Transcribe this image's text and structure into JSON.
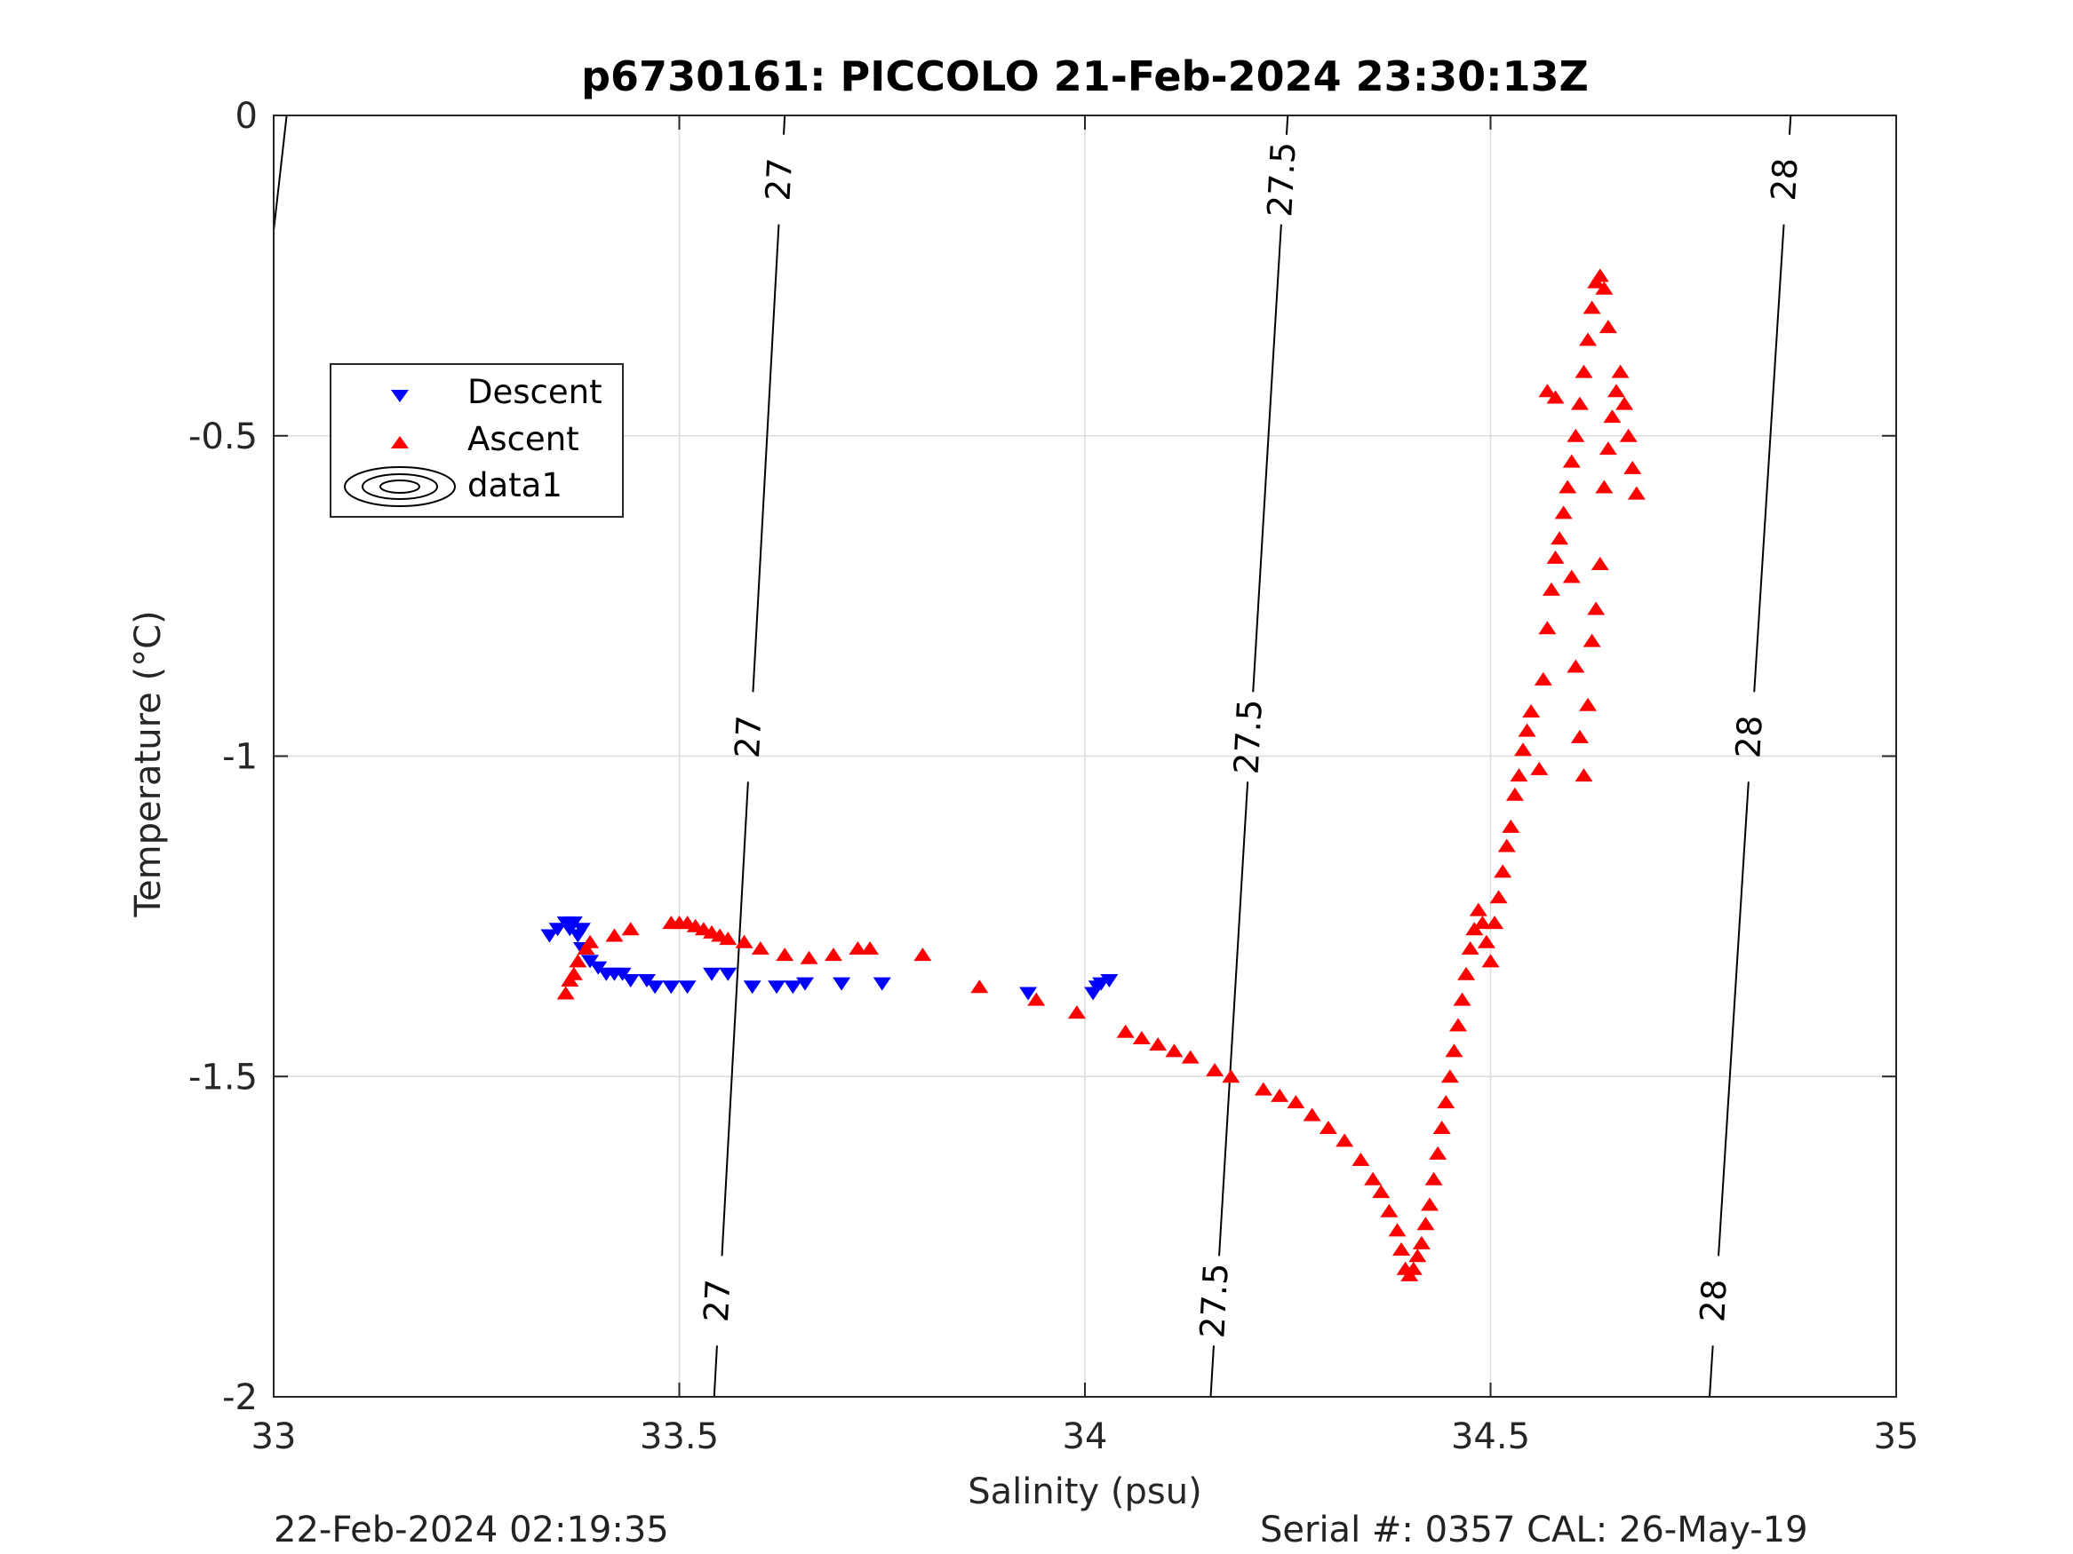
{
  "chart_data": {
    "type": "scatter",
    "title": "p6730161: PICCOLO 21-Feb-2024 23:30:13Z",
    "xlabel": "Salinity (psu)",
    "ylabel": "Temperature (°C)",
    "xlim": [
      33,
      35
    ],
    "ylim": [
      -2,
      0
    ],
    "xticks": [
      33,
      33.5,
      34,
      34.5,
      35
    ],
    "xtick_labels": [
      "33",
      "33.5",
      "34",
      "34.5",
      "35"
    ],
    "yticks": [
      -2,
      -1.5,
      -1,
      -0.5,
      0
    ],
    "ytick_labels": [
      "-2",
      "-1.5",
      "-1",
      "-0.5",
      "0"
    ],
    "grid": true,
    "legend_placement": "upper-left",
    "legend": [
      "Descent",
      "Ascent",
      "data1"
    ],
    "colors": {
      "descent": "#0000ff",
      "ascent": "#ff0000",
      "contour": "#000000",
      "grid": "#dcdcdc",
      "axes": "#262626"
    },
    "series": [
      {
        "name": "Descent",
        "marker": "triangle-down",
        "color": "#0000ff",
        "points": [
          [
            33.34,
            -1.28
          ],
          [
            33.35,
            -1.27
          ],
          [
            33.36,
            -1.26
          ],
          [
            33.365,
            -1.27
          ],
          [
            33.37,
            -1.26
          ],
          [
            33.375,
            -1.28
          ],
          [
            33.38,
            -1.3
          ],
          [
            33.38,
            -1.27
          ],
          [
            33.39,
            -1.32
          ],
          [
            33.4,
            -1.33
          ],
          [
            33.41,
            -1.34
          ],
          [
            33.42,
            -1.34
          ],
          [
            33.43,
            -1.34
          ],
          [
            33.44,
            -1.35
          ],
          [
            33.46,
            -1.35
          ],
          [
            33.47,
            -1.36
          ],
          [
            33.49,
            -1.36
          ],
          [
            33.51,
            -1.36
          ],
          [
            33.54,
            -1.34
          ],
          [
            33.56,
            -1.34
          ],
          [
            33.59,
            -1.36
          ],
          [
            33.62,
            -1.36
          ],
          [
            33.64,
            -1.36
          ],
          [
            33.655,
            -1.355
          ],
          [
            33.7,
            -1.355
          ],
          [
            33.75,
            -1.355
          ],
          [
            33.93,
            -1.37
          ],
          [
            34.01,
            -1.37
          ],
          [
            34.015,
            -1.36
          ],
          [
            34.02,
            -1.355
          ],
          [
            34.03,
            -1.35
          ]
        ]
      },
      {
        "name": "Ascent",
        "marker": "triangle-up",
        "color": "#ff0000",
        "points": [
          [
            33.36,
            -1.37
          ],
          [
            33.365,
            -1.35
          ],
          [
            33.37,
            -1.34
          ],
          [
            33.375,
            -1.32
          ],
          [
            33.385,
            -1.3
          ],
          [
            33.39,
            -1.29
          ],
          [
            33.42,
            -1.28
          ],
          [
            33.44,
            -1.27
          ],
          [
            33.49,
            -1.26
          ],
          [
            33.5,
            -1.26
          ],
          [
            33.51,
            -1.26
          ],
          [
            33.52,
            -1.265
          ],
          [
            33.53,
            -1.27
          ],
          [
            33.54,
            -1.275
          ],
          [
            33.55,
            -1.28
          ],
          [
            33.56,
            -1.285
          ],
          [
            33.58,
            -1.29
          ],
          [
            33.6,
            -1.3
          ],
          [
            33.63,
            -1.31
          ],
          [
            33.66,
            -1.315
          ],
          [
            33.69,
            -1.31
          ],
          [
            33.72,
            -1.3
          ],
          [
            33.735,
            -1.3
          ],
          [
            33.8,
            -1.31
          ],
          [
            33.87,
            -1.36
          ],
          [
            33.94,
            -1.38
          ],
          [
            33.99,
            -1.4
          ],
          [
            34.05,
            -1.43
          ],
          [
            34.07,
            -1.44
          ],
          [
            34.09,
            -1.45
          ],
          [
            34.11,
            -1.46
          ],
          [
            34.13,
            -1.47
          ],
          [
            34.16,
            -1.49
          ],
          [
            34.18,
            -1.5
          ],
          [
            34.22,
            -1.52
          ],
          [
            34.24,
            -1.53
          ],
          [
            34.26,
            -1.54
          ],
          [
            34.28,
            -1.56
          ],
          [
            34.3,
            -1.58
          ],
          [
            34.32,
            -1.6
          ],
          [
            34.34,
            -1.63
          ],
          [
            34.355,
            -1.66
          ],
          [
            34.365,
            -1.68
          ],
          [
            34.375,
            -1.71
          ],
          [
            34.385,
            -1.74
          ],
          [
            34.39,
            -1.77
          ],
          [
            34.395,
            -1.8
          ],
          [
            34.4,
            -1.81
          ],
          [
            34.405,
            -1.8
          ],
          [
            34.41,
            -1.78
          ],
          [
            34.415,
            -1.76
          ],
          [
            34.42,
            -1.73
          ],
          [
            34.425,
            -1.7
          ],
          [
            34.43,
            -1.66
          ],
          [
            34.435,
            -1.62
          ],
          [
            34.44,
            -1.58
          ],
          [
            34.445,
            -1.54
          ],
          [
            34.45,
            -1.5
          ],
          [
            34.455,
            -1.46
          ],
          [
            34.46,
            -1.42
          ],
          [
            34.465,
            -1.38
          ],
          [
            34.47,
            -1.34
          ],
          [
            34.475,
            -1.3
          ],
          [
            34.48,
            -1.27
          ],
          [
            34.485,
            -1.24
          ],
          [
            34.49,
            -1.26
          ],
          [
            34.495,
            -1.29
          ],
          [
            34.5,
            -1.32
          ],
          [
            34.505,
            -1.26
          ],
          [
            34.51,
            -1.22
          ],
          [
            34.515,
            -1.18
          ],
          [
            34.52,
            -1.14
          ],
          [
            34.525,
            -1.11
          ],
          [
            34.53,
            -1.06
          ],
          [
            34.535,
            -1.03
          ],
          [
            34.54,
            -0.99
          ],
          [
            34.545,
            -0.96
          ],
          [
            34.55,
            -0.93
          ],
          [
            34.56,
            -1.02
          ],
          [
            34.565,
            -0.88
          ],
          [
            34.57,
            -0.8
          ],
          [
            34.575,
            -0.74
          ],
          [
            34.58,
            -0.69
          ],
          [
            34.585,
            -0.66
          ],
          [
            34.59,
            -0.62
          ],
          [
            34.595,
            -0.58
          ],
          [
            34.6,
            -0.54
          ],
          [
            34.605,
            -0.5
          ],
          [
            34.61,
            -0.45
          ],
          [
            34.615,
            -0.4
          ],
          [
            34.62,
            -0.35
          ],
          [
            34.625,
            -0.3
          ],
          [
            34.63,
            -0.26
          ],
          [
            34.635,
            -0.25
          ],
          [
            34.64,
            -0.27
          ],
          [
            34.645,
            -0.33
          ],
          [
            34.6,
            -0.72
          ],
          [
            34.605,
            -0.86
          ],
          [
            34.61,
            -0.97
          ],
          [
            34.615,
            -1.03
          ],
          [
            34.62,
            -0.92
          ],
          [
            34.625,
            -0.82
          ],
          [
            34.63,
            -0.77
          ],
          [
            34.635,
            -0.7
          ],
          [
            34.64,
            -0.58
          ],
          [
            34.645,
            -0.52
          ],
          [
            34.65,
            -0.47
          ],
          [
            34.655,
            -0.43
          ],
          [
            34.66,
            -0.4
          ],
          [
            34.665,
            -0.45
          ],
          [
            34.67,
            -0.5
          ],
          [
            34.675,
            -0.55
          ],
          [
            34.68,
            -0.59
          ],
          [
            34.58,
            -0.44
          ],
          [
            34.57,
            -0.43
          ]
        ]
      }
    ],
    "contours": {
      "name": "data1",
      "levels": [
        27,
        27.5,
        28
      ],
      "lines": [
        {
          "level": 27,
          "label": "27",
          "points": [
            [
              33.543,
              -2
            ],
            [
              33.63,
              0
            ]
          ]
        },
        {
          "level": 27.5,
          "label": "27.5",
          "points": [
            [
              34.155,
              -2
            ],
            [
              34.25,
              0
            ]
          ]
        },
        {
          "level": 28,
          "label": "28",
          "points": [
            [
              34.77,
              -2
            ],
            [
              34.87,
              0
            ]
          ]
        }
      ],
      "label_positions_y": [
        -0.1,
        -0.97,
        -1.85
      ],
      "edge_line": {
        "points": [
          [
            33.0,
            -0.18
          ],
          [
            33.016,
            0
          ]
        ]
      }
    }
  },
  "footer": {
    "timestamp": "22-Feb-2024 02:19:35",
    "serial": "Serial #: 0357  CAL: 26-May-19"
  }
}
